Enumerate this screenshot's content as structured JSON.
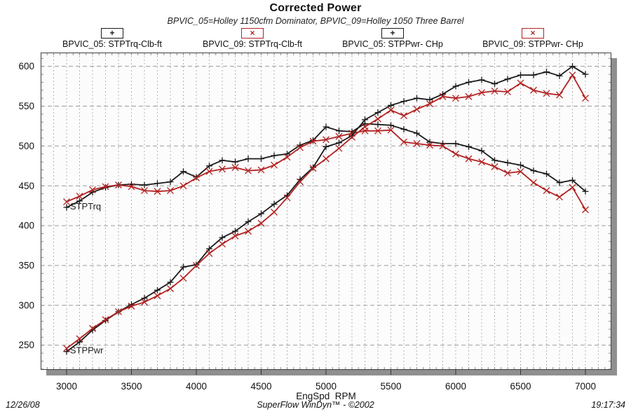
{
  "header": {
    "title": "Corrected Power",
    "subtitle": "BPVIC_05=Holley 1150cfm Dominator, BPVIC_09=Holley 1050 Three Barrel"
  },
  "icons": {
    "plus": "+",
    "cross": "×"
  },
  "footer": {
    "date": "12/26/08",
    "brand": "SuperFlow WinDyn™ - ©2002",
    "time": "19:17:34"
  },
  "chart_data": {
    "type": "line",
    "title": "Corrected Power",
    "subtitle": "BPVIC_05=Holley 1150cfm Dominator, BPVIC_09=Holley 1050 Three Barrel",
    "xlabel": "EngSpd  RPM",
    "ylabel": "",
    "xlim": [
      2800,
      7200
    ],
    "ylim": [
      219,
      617
    ],
    "x_ticks": [
      3000,
      3500,
      4000,
      4500,
      5000,
      5500,
      6000,
      6500,
      7000
    ],
    "y_ticks": [
      250,
      300,
      350,
      400,
      450,
      500,
      550,
      600
    ],
    "grid": "gray dashed; vertical every 100 RPM, horizontal every 50 units, minor ticks every 10 units / 50 RPM",
    "legend_position": "top",
    "x": [
      3000,
      3100,
      3200,
      3300,
      3400,
      3500,
      3600,
      3700,
      3800,
      3900,
      4000,
      4100,
      4200,
      4300,
      4400,
      4500,
      4600,
      4700,
      4800,
      4900,
      5000,
      5100,
      5200,
      5300,
      5400,
      5500,
      5600,
      5700,
      5800,
      5900,
      6000,
      6100,
      6200,
      6300,
      6400,
      6500,
      6600,
      6700,
      6800,
      6900,
      7000
    ],
    "series": [
      {
        "name": "BPVIC_05: STPTrq-Clb-ft",
        "color": "#1a1a1a",
        "marker": "plus",
        "values": [
          423,
          431,
          442,
          448,
          451,
          452,
          451,
          453,
          455,
          468,
          461,
          475,
          482,
          480,
          484,
          484,
          488,
          490,
          501,
          507,
          524,
          519,
          518,
          528,
          527,
          526,
          521,
          516,
          505,
          503,
          503,
          499,
          494,
          482,
          479,
          476,
          469,
          465,
          454,
          457,
          443
        ]
      },
      {
        "name": "BPVIC_09: STPTrq-Clb-ft",
        "color": "#b22222",
        "marker": "cross",
        "values": [
          430,
          437,
          445,
          449,
          451,
          449,
          444,
          443,
          444,
          450,
          460,
          468,
          471,
          473,
          469,
          470,
          476,
          486,
          498,
          506,
          508,
          512,
          516,
          519,
          519,
          520,
          505,
          503,
          501,
          500,
          490,
          484,
          480,
          474,
          466,
          468,
          454,
          444,
          436,
          448,
          420
        ]
      },
      {
        "name": "BPVIC_05: STPPwr- CHp",
        "color": "#1a1a1a",
        "marker": "plus",
        "values": [
          242,
          254,
          269,
          281,
          292,
          301,
          309,
          319,
          329,
          348,
          351,
          371,
          385,
          393,
          405,
          415,
          427,
          438,
          458,
          473,
          499,
          504,
          513,
          533,
          542,
          551,
          556,
          560,
          558,
          565,
          575,
          580,
          583,
          578,
          584,
          589,
          589,
          593,
          588,
          600,
          590
        ]
      },
      {
        "name": "BPVIC_09: STPPwr- CHp",
        "color": "#b22222",
        "marker": "cross",
        "values": [
          246,
          258,
          271,
          282,
          292,
          299,
          304,
          312,
          321,
          334,
          350,
          365,
          377,
          387,
          393,
          403,
          417,
          435,
          455,
          472,
          484,
          497,
          511,
          524,
          534,
          545,
          538,
          546,
          553,
          562,
          560,
          562,
          567,
          569,
          568,
          579,
          570,
          566,
          564,
          589,
          560
        ]
      }
    ],
    "annotations": [
      {
        "text": "STPTrq",
        "rpm": 3010,
        "value": 424
      },
      {
        "text": "STPPwr",
        "rpm": 3010,
        "value": 243
      }
    ]
  }
}
